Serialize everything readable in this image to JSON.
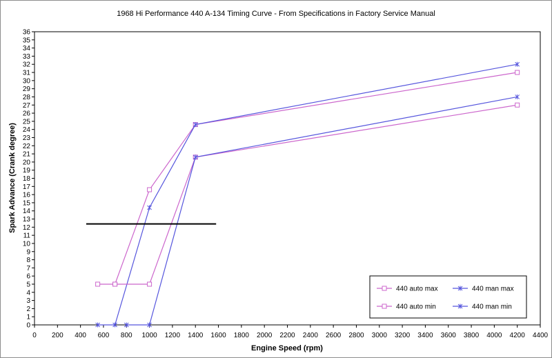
{
  "chart_data": {
    "type": "line",
    "title": "1968 Hi Performance 440 A-134 Timing Curve - From Specifications in Factory Service Manual",
    "xlabel": "Engine Speed (rpm)",
    "ylabel": "Spark Advance (Crank degree)",
    "xlim": [
      0,
      4400
    ],
    "ylim": [
      0,
      36
    ],
    "x_ticks": [
      0,
      200,
      400,
      600,
      800,
      1000,
      1200,
      1400,
      1600,
      1800,
      2000,
      2200,
      2400,
      2600,
      2800,
      3000,
      3200,
      3400,
      3600,
      3800,
      4000,
      4200,
      4400
    ],
    "y_ticks": [
      0,
      1,
      2,
      3,
      4,
      5,
      6,
      7,
      8,
      9,
      10,
      11,
      12,
      13,
      14,
      15,
      16,
      17,
      18,
      19,
      20,
      21,
      22,
      23,
      24,
      25,
      26,
      27,
      28,
      29,
      30,
      31,
      32,
      33,
      34,
      35,
      36
    ],
    "grid": false,
    "legend_position": "bottom-right",
    "series": [
      {
        "name": "440 auto max",
        "color": "#cc66cc",
        "marker": "square",
        "x": [
          550,
          700,
          1000,
          1400,
          4200
        ],
        "y": [
          5,
          5,
          16.6,
          24.6,
          31
        ]
      },
      {
        "name": "440 man max",
        "color": "#5555dd",
        "marker": "star",
        "x": [
          550,
          700,
          1000,
          1400,
          4200
        ],
        "y": [
          0,
          0,
          14.4,
          24.6,
          32
        ]
      },
      {
        "name": "440 auto min",
        "color": "#cc66cc",
        "marker": "square",
        "x": [
          700,
          1000,
          1400,
          4200
        ],
        "y": [
          5,
          5,
          20.6,
          27
        ]
      },
      {
        "name": "440 man min",
        "color": "#5555dd",
        "marker": "star",
        "x": [
          800,
          1000,
          1400,
          4200
        ],
        "y": [
          0,
          0,
          20.6,
          28
        ]
      }
    ],
    "annotation_line": {
      "color": "#000000",
      "x": [
        450,
        1580
      ],
      "y": [
        12.4,
        12.4
      ]
    }
  }
}
